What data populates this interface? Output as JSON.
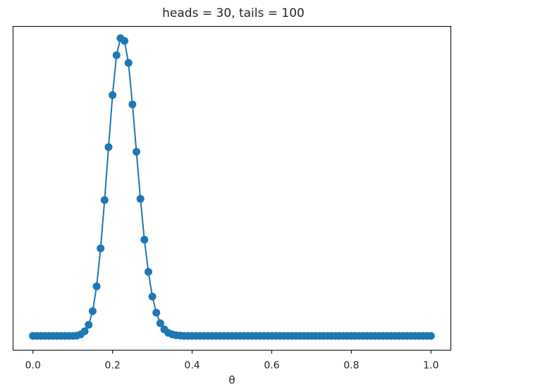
{
  "chart_data": {
    "type": "line",
    "title": "heads = 30, tails = 100",
    "xlabel": "θ",
    "ylabel": "",
    "xlim": [
      -0.05,
      1.05
    ],
    "ylim": [
      -0.0046,
      0.1
    ],
    "xticks": [
      0.0,
      0.2,
      0.4,
      0.6,
      0.8,
      1.0
    ],
    "xtick_labels": [
      "0.0",
      "0.2",
      "0.4",
      "0.6",
      "0.8",
      "1.0"
    ],
    "yticks_visible": false,
    "grid": false,
    "markers": "circle",
    "colors": {
      "series": "#1f77b4"
    },
    "x": [
      0.0,
      0.01,
      0.02,
      0.03,
      0.04,
      0.05,
      0.06,
      0.07,
      0.08,
      0.09,
      0.1,
      0.11,
      0.12,
      0.13,
      0.14,
      0.15,
      0.16,
      0.17,
      0.18,
      0.19,
      0.2,
      0.21,
      0.22,
      0.23,
      0.24,
      0.25,
      0.26,
      0.27,
      0.28,
      0.29,
      0.3,
      0.31,
      0.32,
      0.33,
      0.34,
      0.35,
      0.36,
      0.37,
      0.38,
      0.39,
      0.4,
      0.41,
      0.42,
      0.43,
      0.44,
      0.45,
      0.46,
      0.47,
      0.48,
      0.49,
      0.5,
      0.51,
      0.52,
      0.53,
      0.54,
      0.55,
      0.56,
      0.57,
      0.58,
      0.59,
      0.6,
      0.61,
      0.62,
      0.63,
      0.64,
      0.65,
      0.66,
      0.67,
      0.68,
      0.69,
      0.7,
      0.71,
      0.72,
      0.73,
      0.74,
      0.75,
      0.76,
      0.77,
      0.78,
      0.79,
      0.8,
      0.81,
      0.82,
      0.83,
      0.84,
      0.85,
      0.86,
      0.87,
      0.88,
      0.89,
      0.9,
      0.91,
      0.92,
      0.93,
      0.94,
      0.95,
      0.96,
      0.97,
      0.98,
      0.99,
      1.0
    ],
    "series": [
      {
        "values": [
          0,
          0,
          0,
          0,
          0,
          0,
          0,
          0,
          0,
          0,
          0,
          0.0001,
          0.0005,
          0.0015,
          0.0036,
          0.008,
          0.016,
          0.0283,
          0.0439,
          0.061,
          0.0778,
          0.0907,
          0.0962,
          0.0953,
          0.0882,
          0.0748,
          0.0595,
          0.0443,
          0.0311,
          0.0207,
          0.0127,
          0.0075,
          0.0041,
          0.0021,
          0.001,
          0.0005,
          0.0002,
          0.0001,
          0,
          0,
          0,
          0,
          0,
          0,
          0,
          0,
          0,
          0,
          0,
          0,
          0,
          0,
          0,
          0,
          0,
          0,
          0,
          0,
          0,
          0,
          0,
          0,
          0,
          0,
          0,
          0,
          0,
          0,
          0,
          0,
          0,
          0,
          0,
          0,
          0,
          0,
          0,
          0,
          0,
          0,
          0,
          0,
          0,
          0,
          0,
          0,
          0,
          0,
          0,
          0,
          0,
          0,
          0,
          0,
          0,
          0,
          0,
          0,
          0,
          0,
          0
        ]
      }
    ]
  }
}
